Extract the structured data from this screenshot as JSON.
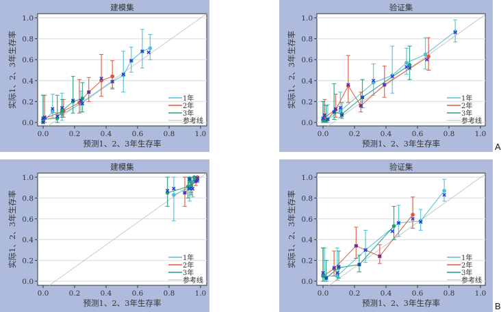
{
  "panel_tags": [
    "A",
    "B"
  ],
  "chart_data": [
    {
      "type": "line",
      "title": "建模集",
      "xlabel": "预测1、2、3年生存率",
      "ylabel": "实际1、2、3年生存率",
      "xlim": [
        0,
        1
      ],
      "ylim": [
        0,
        1
      ],
      "xticks": [
        "0.0",
        "0.2",
        "0.4",
        "0.6",
        "0.8",
        "1.0"
      ],
      "yticks": [
        "0.0",
        "0.2",
        "0.4",
        "0.6",
        "0.8",
        "1.0"
      ],
      "grid": true,
      "legend_position": "bottom-right",
      "legend": [
        "1年",
        "2年",
        "3年",
        "参考线"
      ],
      "series": [
        {
          "name": "1年",
          "color": "#4cc0d4",
          "x": [
            0.0,
            0.06,
            0.12,
            0.24,
            0.44,
            0.51,
            0.56,
            0.63,
            0.68
          ],
          "y": [
            0.01,
            0.1,
            0.08,
            0.18,
            0.39,
            0.45,
            0.59,
            0.68,
            0.71
          ],
          "lo": [
            0,
            0.05,
            0.02,
            0.1,
            0.33,
            0.29,
            0.48,
            0.52,
            0.6
          ],
          "hi": [
            0.26,
            0.27,
            0.28,
            0.3,
            0.45,
            0.68,
            0.72,
            0.89,
            0.84
          ]
        },
        {
          "name": "2年",
          "color": "#e0553e",
          "x": [
            0.01,
            0.13,
            0.23,
            0.29,
            0.37,
            0.44
          ],
          "y": [
            0.04,
            0.11,
            0.19,
            0.29,
            0.4,
            0.44
          ],
          "lo": [
            0,
            0.05,
            0.09,
            0.2,
            0.25,
            0.32
          ],
          "hi": [
            0.26,
            0.22,
            0.41,
            0.43,
            0.65,
            0.59
          ]
        },
        {
          "name": "3年",
          "color": "#1c9e7c",
          "x": [
            0.0,
            0.09,
            0.12,
            0.19,
            0.25
          ],
          "y": [
            0.03,
            0.04,
            0.11,
            0.2,
            0.23
          ],
          "lo": [
            0,
            0,
            0.05,
            0.09,
            0.1
          ],
          "hi": [
            0.26,
            0.26,
            0.22,
            0.44,
            0.38
          ]
        }
      ],
      "markers": {
        "color": "#2a35d0",
        "x": [
          0.0,
          0.01,
          0.0,
          0.06,
          0.09,
          0.12,
          0.19,
          0.24,
          0.25,
          0.29,
          0.37,
          0.44,
          0.51,
          0.56,
          0.63,
          0.67
        ],
        "y": [
          0.04,
          0.05,
          0.0,
          0.13,
          0.06,
          0.14,
          0.21,
          0.21,
          0.18,
          0.29,
          0.42,
          0.39,
          0.46,
          0.59,
          0.68,
          0.67
        ]
      }
    },
    {
      "type": "line",
      "title": "验证集",
      "xlabel": "预测1、2、3年生存率",
      "ylabel": "实际1、2、3年生存率",
      "xlim": [
        0,
        1
      ],
      "ylim": [
        0,
        1
      ],
      "xticks": [
        "0.0",
        "0.2",
        "0.4",
        "0.6",
        "0.8",
        "1.0"
      ],
      "yticks": [
        "0.0",
        "0.2",
        "0.4",
        "0.6",
        "0.8",
        "1.0"
      ],
      "grid": true,
      "legend_position": "bottom-right",
      "legend": [
        "1年",
        "2年",
        "3年",
        "参考线"
      ],
      "series": [
        {
          "name": "1年",
          "color": "#4cc0d4",
          "x": [
            0.0,
            0.01,
            0.03,
            0.11,
            0.32,
            0.44,
            0.53,
            0.65,
            0.84
          ],
          "y": [
            0.03,
            0.05,
            0.03,
            0.11,
            0.38,
            0.45,
            0.57,
            0.65,
            0.87
          ],
          "lo": [
            0,
            0,
            0,
            0.05,
            0.26,
            0.28,
            0.46,
            0.51,
            0.77
          ],
          "hi": [
            0.2,
            0.17,
            0.17,
            0.29,
            0.56,
            0.73,
            0.71,
            0.81,
            0.98
          ]
        },
        {
          "name": "2年",
          "color": "#e0553e",
          "x": [
            0.01,
            0.08,
            0.16,
            0.24,
            0.39,
            0.67
          ],
          "y": [
            0.05,
            0.12,
            0.35,
            0.16,
            0.36,
            0.63
          ],
          "lo": [
            0,
            0.05,
            0.19,
            0.1,
            0.24,
            0.5
          ],
          "hi": [
            0.22,
            0.27,
            0.64,
            0.29,
            0.54,
            0.81
          ]
        },
        {
          "name": "3年",
          "color": "#1c9e7c",
          "x": [
            0.0,
            0.02,
            0.07,
            0.12,
            0.25,
            0.55
          ],
          "y": [
            0.02,
            0.02,
            0.1,
            0.08,
            0.24,
            0.55
          ],
          "lo": [
            0,
            0,
            0.03,
            0.04,
            0.14,
            0.41
          ],
          "hi": [
            0.2,
            0.16,
            0.37,
            0.19,
            0.41,
            0.73
          ]
        }
      ],
      "markers": {
        "color": "#2a35d0",
        "x": [
          0.0,
          0.01,
          0.03,
          0.07,
          0.08,
          0.11,
          0.12,
          0.16,
          0.24,
          0.25,
          0.32,
          0.39,
          0.44,
          0.53,
          0.55,
          0.66,
          0.84
        ],
        "y": [
          0.04,
          0.07,
          0.03,
          0.1,
          0.13,
          0.14,
          0.07,
          0.36,
          0.16,
          0.24,
          0.4,
          0.36,
          0.44,
          0.53,
          0.52,
          0.6,
          0.86
        ]
      }
    },
    {
      "type": "line",
      "title": "建模集",
      "xlabel": "预测1、2、3年生存率",
      "ylabel": "实际1、2、3年生存率",
      "xlim": [
        0,
        1
      ],
      "ylim": [
        0,
        1
      ],
      "xticks": [
        "0.0",
        "0.2",
        "0.4",
        "0.6",
        "0.8",
        "1.0"
      ],
      "yticks": [
        "0.0",
        "0.2",
        "0.4",
        "0.6",
        "0.8",
        "1.0"
      ],
      "grid": true,
      "legend_position": "bottom-right",
      "legend": [
        "1年",
        "2年",
        "3年",
        "参考线"
      ],
      "series": [
        {
          "name": "1年",
          "color": "#4cc0d4",
          "x": [
            0.83,
            0.93,
            0.95,
            0.97,
            0.98
          ],
          "y": [
            0.83,
            0.9,
            0.95,
            0.99,
            0.98
          ],
          "lo": [
            0.58,
            0.77,
            0.81,
            0.95,
            0.95
          ],
          "hi": [
            1,
            1,
            1,
            1,
            1
          ]
        },
        {
          "name": "2年",
          "color": "#e0553e",
          "x": [
            0.9,
            0.94,
            0.97,
            0.98
          ],
          "y": [
            0.85,
            0.92,
            0.96,
            1.0
          ],
          "lo": [
            0.72,
            0.85,
            0.92,
            0.97
          ],
          "hi": [
            1,
            1,
            1,
            1
          ]
        },
        {
          "name": "3年",
          "color": "#1c9e7c",
          "x": [
            0.79,
            0.92,
            0.93,
            0.94,
            0.96
          ],
          "y": [
            0.85,
            0.91,
            0.99,
            0.91,
            1.0
          ],
          "lo": [
            0.72,
            0.8,
            0.95,
            0.83,
            0.97
          ],
          "hi": [
            1,
            1,
            1,
            1,
            1
          ]
        }
      ],
      "markers": {
        "color": "#2a35d0",
        "x": [
          0.79,
          0.83,
          0.9,
          0.93,
          0.93,
          0.95,
          0.97,
          0.98,
          0.98
        ],
        "y": [
          0.87,
          0.89,
          0.85,
          0.89,
          0.98,
          0.89,
          0.96,
          0.97,
          0.99
        ]
      }
    },
    {
      "type": "line",
      "title": "验证集",
      "xlabel": "预测1、2、3年生存率",
      "ylabel": "实际1、2、3年生存率",
      "xlim": [
        0,
        1
      ],
      "ylim": [
        0,
        1
      ],
      "xticks": [
        "0.0",
        "0.2",
        "0.4",
        "0.6",
        "0.8",
        "1.0"
      ],
      "yticks": [
        "0.0",
        "0.2",
        "0.4",
        "0.6",
        "0.8",
        "1.0"
      ],
      "grid": true,
      "legend_position": "bottom-right",
      "legend": [
        "1年",
        "2年",
        "3年",
        "参考线"
      ],
      "series": [
        {
          "name": "1年",
          "color": "#4cc0d4",
          "x": [
            0.01,
            0.09,
            0.27,
            0.48,
            0.62,
            0.77
          ],
          "y": [
            0.05,
            0.05,
            0.3,
            0.56,
            0.58,
            0.87
          ],
          "lo": [
            0,
            0.01,
            0.18,
            0.43,
            0.49,
            0.77
          ],
          "hi": [
            0.32,
            0.32,
            0.49,
            0.73,
            0.69,
            0.98
          ]
        },
        {
          "name": "2年",
          "color": "#e0553e",
          "x": [
            0.0,
            0.07,
            0.21,
            0.36,
            0.57
          ],
          "y": [
            0.05,
            0.12,
            0.34,
            0.24,
            0.64
          ],
          "lo": [
            0,
            0.05,
            0.22,
            0.17,
            0.51
          ],
          "hi": [
            0.32,
            0.29,
            0.52,
            0.35,
            0.81
          ]
        },
        {
          "name": "3年",
          "color": "#1c9e7c",
          "x": [
            0.0,
            0.02,
            0.1,
            0.23,
            0.45
          ],
          "y": [
            0.05,
            0.03,
            0.13,
            0.16,
            0.53
          ],
          "lo": [
            0,
            0,
            0.03,
            0.09,
            0.4
          ],
          "hi": [
            0.32,
            0.2,
            0.29,
            0.25,
            0.72
          ]
        }
      ],
      "markers": {
        "color": "#2a35d0",
        "x": [
          0.0,
          0.02,
          0.07,
          0.09,
          0.1,
          0.21,
          0.23,
          0.27,
          0.36,
          0.44,
          0.48,
          0.57,
          0.62,
          0.77
        ],
        "y": [
          0.08,
          0.03,
          0.13,
          0.08,
          0.14,
          0.34,
          0.16,
          0.3,
          0.24,
          0.48,
          0.56,
          0.6,
          0.57,
          0.83
        ]
      }
    }
  ]
}
